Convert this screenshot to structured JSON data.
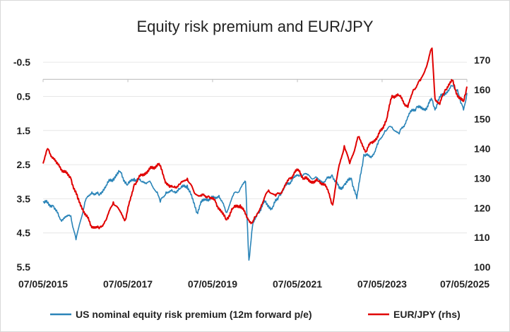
{
  "chart_data": {
    "type": "line",
    "title": "Equity risk premium and EUR/JPY",
    "x_ticks": [
      "07/05/2015",
      "07/05/2017",
      "07/05/2019",
      "07/05/2021",
      "07/05/2023",
      "07/05/2025"
    ],
    "x_range": [
      "2015-05-07",
      "2025-05-07"
    ],
    "y_left": {
      "inverted": true,
      "range": [
        -1.0,
        5.5
      ],
      "ticks": [
        "-0.5",
        "0.5",
        "1.5",
        "2.5",
        "3.5",
        "4.5",
        "5.5"
      ]
    },
    "y_right": {
      "range": [
        100,
        175
      ],
      "ticks": [
        "100",
        "110",
        "120",
        "130",
        "140",
        "150",
        "160",
        "170"
      ]
    },
    "grid": "horizontal",
    "legend_position": "bottom",
    "series": [
      {
        "name": "US nominal equity risk premium (12m forward p/e)",
        "axis": "left",
        "color": "#2a84b8",
        "x": [
          "2015-05-07",
          "2015-08-01",
          "2015-10-01",
          "2016-01-01",
          "2016-02-15",
          "2016-05-01",
          "2016-07-01",
          "2016-09-01",
          "2016-11-01",
          "2017-01-01",
          "2017-03-01",
          "2017-05-01",
          "2017-07-01",
          "2017-09-01",
          "2017-11-01",
          "2018-01-15",
          "2018-02-10",
          "2018-04-01",
          "2018-06-01",
          "2018-08-01",
          "2018-10-01",
          "2018-12-24",
          "2019-01-15",
          "2019-03-01",
          "2019-05-07",
          "2019-07-01",
          "2019-09-01",
          "2019-11-01",
          "2020-01-01",
          "2020-02-15",
          "2020-03-15",
          "2020-04-15",
          "2020-06-01",
          "2020-08-01",
          "2020-10-01",
          "2020-12-01",
          "2021-02-01",
          "2021-04-01",
          "2021-06-01",
          "2021-08-01",
          "2021-10-01",
          "2022-01-01",
          "2022-03-01",
          "2022-05-01",
          "2022-06-15",
          "2022-08-15",
          "2022-10-01",
          "2022-12-01",
          "2023-02-01",
          "2023-04-01",
          "2023-06-01",
          "2023-08-01",
          "2023-10-01",
          "2024-01-01",
          "2024-03-01",
          "2024-05-01",
          "2024-07-10",
          "2024-08-05",
          "2024-09-01",
          "2024-11-01",
          "2025-01-01",
          "2025-02-15",
          "2025-03-15",
          "2025-04-08",
          "2025-05-07"
        ],
        "values": [
          3.6,
          3.7,
          4.1,
          4.0,
          4.7,
          3.6,
          3.3,
          3.4,
          3.1,
          2.9,
          2.7,
          3.1,
          2.9,
          3.0,
          3.0,
          3.3,
          3.6,
          3.3,
          3.3,
          3.2,
          3.1,
          3.9,
          3.7,
          3.5,
          3.5,
          3.4,
          3.9,
          3.4,
          3.2,
          3.0,
          5.3,
          4.3,
          3.9,
          3.6,
          3.8,
          3.4,
          3.1,
          2.9,
          2.8,
          2.8,
          2.9,
          3.0,
          2.8,
          3.2,
          3.1,
          2.9,
          3.5,
          2.2,
          2.3,
          1.9,
          1.5,
          1.4,
          1.6,
          1.0,
          0.8,
          0.9,
          0.6,
          0.9,
          0.6,
          0.4,
          0.2,
          0.3,
          0.7,
          0.9,
          0.4
        ]
      },
      {
        "name": "EUR/JPY (rhs)",
        "axis": "right",
        "color": "#e00000",
        "x": [
          "2015-05-07",
          "2015-06-15",
          "2015-09-01",
          "2016-01-01",
          "2016-03-01",
          "2016-06-24",
          "2016-09-01",
          "2016-11-01",
          "2017-01-01",
          "2017-04-15",
          "2017-07-01",
          "2017-09-01",
          "2018-01-31",
          "2018-03-15",
          "2018-05-01",
          "2018-06-01",
          "2018-08-01",
          "2018-10-01",
          "2018-12-01",
          "2019-02-01",
          "2019-04-01",
          "2019-06-01",
          "2019-08-31",
          "2019-11-01",
          "2020-01-01",
          "2020-03-09",
          "2020-04-15",
          "2020-05-15",
          "2020-07-01",
          "2020-09-01",
          "2020-11-01",
          "2021-01-01",
          "2021-03-01",
          "2021-05-15",
          "2021-07-01",
          "2021-09-01",
          "2021-11-01",
          "2022-01-01",
          "2022-03-07",
          "2022-04-20",
          "2022-06-15",
          "2022-08-01",
          "2022-10-15",
          "2022-12-20",
          "2023-02-01",
          "2023-04-01",
          "2023-06-15",
          "2023-08-01",
          "2023-10-01",
          "2023-12-15",
          "2024-02-01",
          "2024-04-01",
          "2024-05-15",
          "2024-07-10",
          "2024-08-05",
          "2024-09-15",
          "2024-11-01",
          "2025-01-01",
          "2025-02-28",
          "2025-04-08",
          "2025-05-07"
        ],
        "values": [
          135,
          140,
          135,
          130,
          123,
          114,
          113,
          116,
          122,
          116,
          128,
          131,
          135,
          130,
          127,
          127,
          128,
          130,
          125,
          124,
          124,
          122,
          116,
          120,
          121,
          116,
          115,
          117,
          121,
          126,
          124,
          126,
          130,
          133,
          130,
          129,
          129,
          128,
          121,
          132,
          141,
          135,
          144,
          139,
          142,
          144,
          150,
          158,
          158,
          154,
          160,
          163,
          167,
          174,
          157,
          155,
          160,
          163,
          157,
          156,
          161
        ]
      }
    ]
  }
}
